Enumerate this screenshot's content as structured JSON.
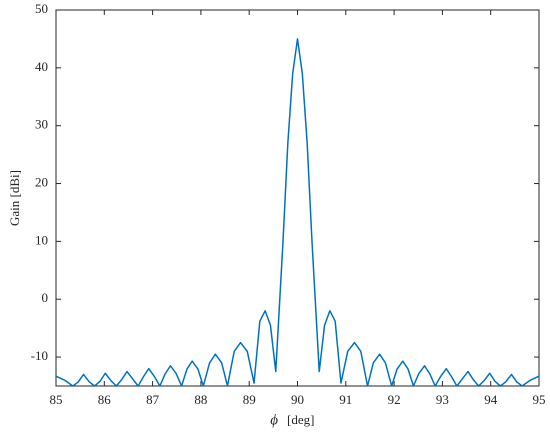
{
  "chart_data": {
    "type": "line",
    "x_label": "ϕ",
    "x_unit_label": "[deg]",
    "y_label": "Gain [dBi]",
    "color": "#0072bd",
    "xlim": [
      85,
      95
    ],
    "ylim": [
      -15,
      50
    ],
    "xticks": [
      85,
      86,
      87,
      88,
      89,
      90,
      91,
      92,
      93,
      94,
      95
    ],
    "yticks": [
      -10,
      0,
      10,
      20,
      30,
      40,
      50
    ],
    "grid": false,
    "x": [
      85,
      85.18,
      85.35,
      85.46,
      85.57,
      85.69,
      85.8,
      85.91,
      86.02,
      86.14,
      86.25,
      86.36,
      86.47,
      86.59,
      86.7,
      86.81,
      86.92,
      87.04,
      87.15,
      87.26,
      87.37,
      87.49,
      87.6,
      87.71,
      87.82,
      87.94,
      88.05,
      88.18,
      88.3,
      88.43,
      88.55,
      88.69,
      88.82,
      88.96,
      89.1,
      89.22,
      89.33,
      89.44,
      89.55,
      89.7,
      89.8,
      89.9,
      90,
      90.1,
      90.2,
      90.3,
      90.45,
      90.56,
      90.67,
      90.78,
      90.9,
      91.04,
      91.18,
      91.31,
      91.45,
      91.57,
      91.7,
      91.82,
      91.95,
      92.06,
      92.18,
      92.29,
      92.4,
      92.51,
      92.63,
      92.74,
      92.85,
      92.96,
      93.08,
      93.19,
      93.3,
      93.41,
      93.53,
      93.64,
      93.75,
      93.86,
      93.98,
      94.09,
      94.2,
      94.31,
      94.43,
      94.54,
      94.65,
      94.82,
      95
    ],
    "values": [
      -13.3,
      -14.0,
      -15,
      -14.3,
      -13.0,
      -14.3,
      -15,
      -14.2,
      -12.8,
      -14.1,
      -15,
      -13.9,
      -12.5,
      -13.8,
      -15,
      -13.4,
      -12.0,
      -13.4,
      -15,
      -12.9,
      -11.5,
      -12.9,
      -15,
      -12.1,
      -10.7,
      -12.1,
      -15,
      -11.0,
      -9.5,
      -11.0,
      -15,
      -9.0,
      -7.5,
      -9.0,
      -14.5,
      -3.8,
      -2,
      -4.5,
      -12.5,
      10,
      27,
      39,
      45,
      39,
      27,
      10,
      -12.5,
      -4.5,
      -2,
      -3.8,
      -14.5,
      -9.0,
      -7.5,
      -9.0,
      -15,
      -11.0,
      -9.5,
      -11.0,
      -15,
      -12.1,
      -10.7,
      -12.1,
      -15,
      -12.9,
      -11.5,
      -12.9,
      -15,
      -13.4,
      -12.0,
      -13.4,
      -15,
      -13.8,
      -12.5,
      -13.9,
      -15,
      -14.1,
      -12.8,
      -14.2,
      -15,
      -14.3,
      -13.0,
      -14.3,
      -15,
      -14.0,
      -13.3
    ]
  }
}
